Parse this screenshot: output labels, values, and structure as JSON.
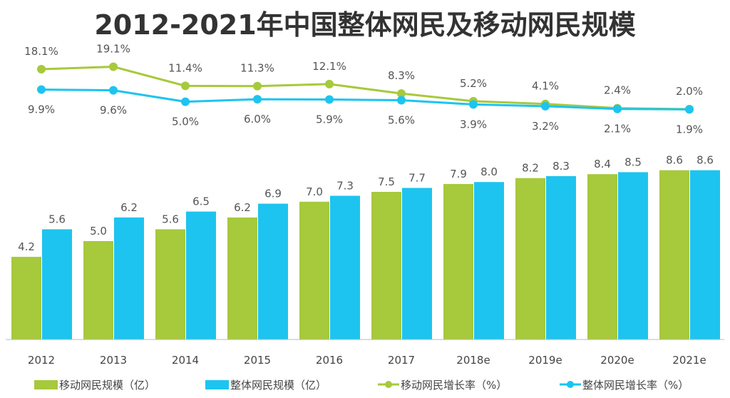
{
  "chart_data": {
    "type": "bar+line",
    "title": "2012-2021年中国整体网民及移动网民规模",
    "categories": [
      "2012",
      "2013",
      "2014",
      "2015",
      "2016",
      "2017",
      "2018e",
      "2019e",
      "2020e",
      "2021e"
    ],
    "bar_series": [
      {
        "name": "移动网民规模（亿）",
        "color": "#a7c93c",
        "values": [
          4.2,
          5.0,
          5.6,
          6.2,
          7.0,
          7.5,
          7.9,
          8.2,
          8.4,
          8.6
        ]
      },
      {
        "name": "整体网民规模（亿）",
        "color": "#1dc4ef",
        "values": [
          5.6,
          6.2,
          6.5,
          6.9,
          7.3,
          7.7,
          8.0,
          8.3,
          8.5,
          8.6
        ]
      }
    ],
    "line_series": [
      {
        "name": "移动网民增长率（%）",
        "color": "#a7c93c",
        "values": [
          18.1,
          19.1,
          11.4,
          11.3,
          12.1,
          8.3,
          5.2,
          4.1,
          2.4,
          2.0
        ],
        "label_position": "above"
      },
      {
        "name": "整体网民增长率（%）",
        "color": "#1dc4ef",
        "values": [
          9.9,
          9.6,
          5.0,
          6.0,
          5.9,
          5.6,
          3.9,
          3.2,
          2.1,
          1.9
        ],
        "label_position": "below"
      }
    ],
    "bar_ylim": [
      0,
      10
    ],
    "line_ylim": [
      0,
      46
    ],
    "grid": false,
    "legend_position": "bottom"
  }
}
